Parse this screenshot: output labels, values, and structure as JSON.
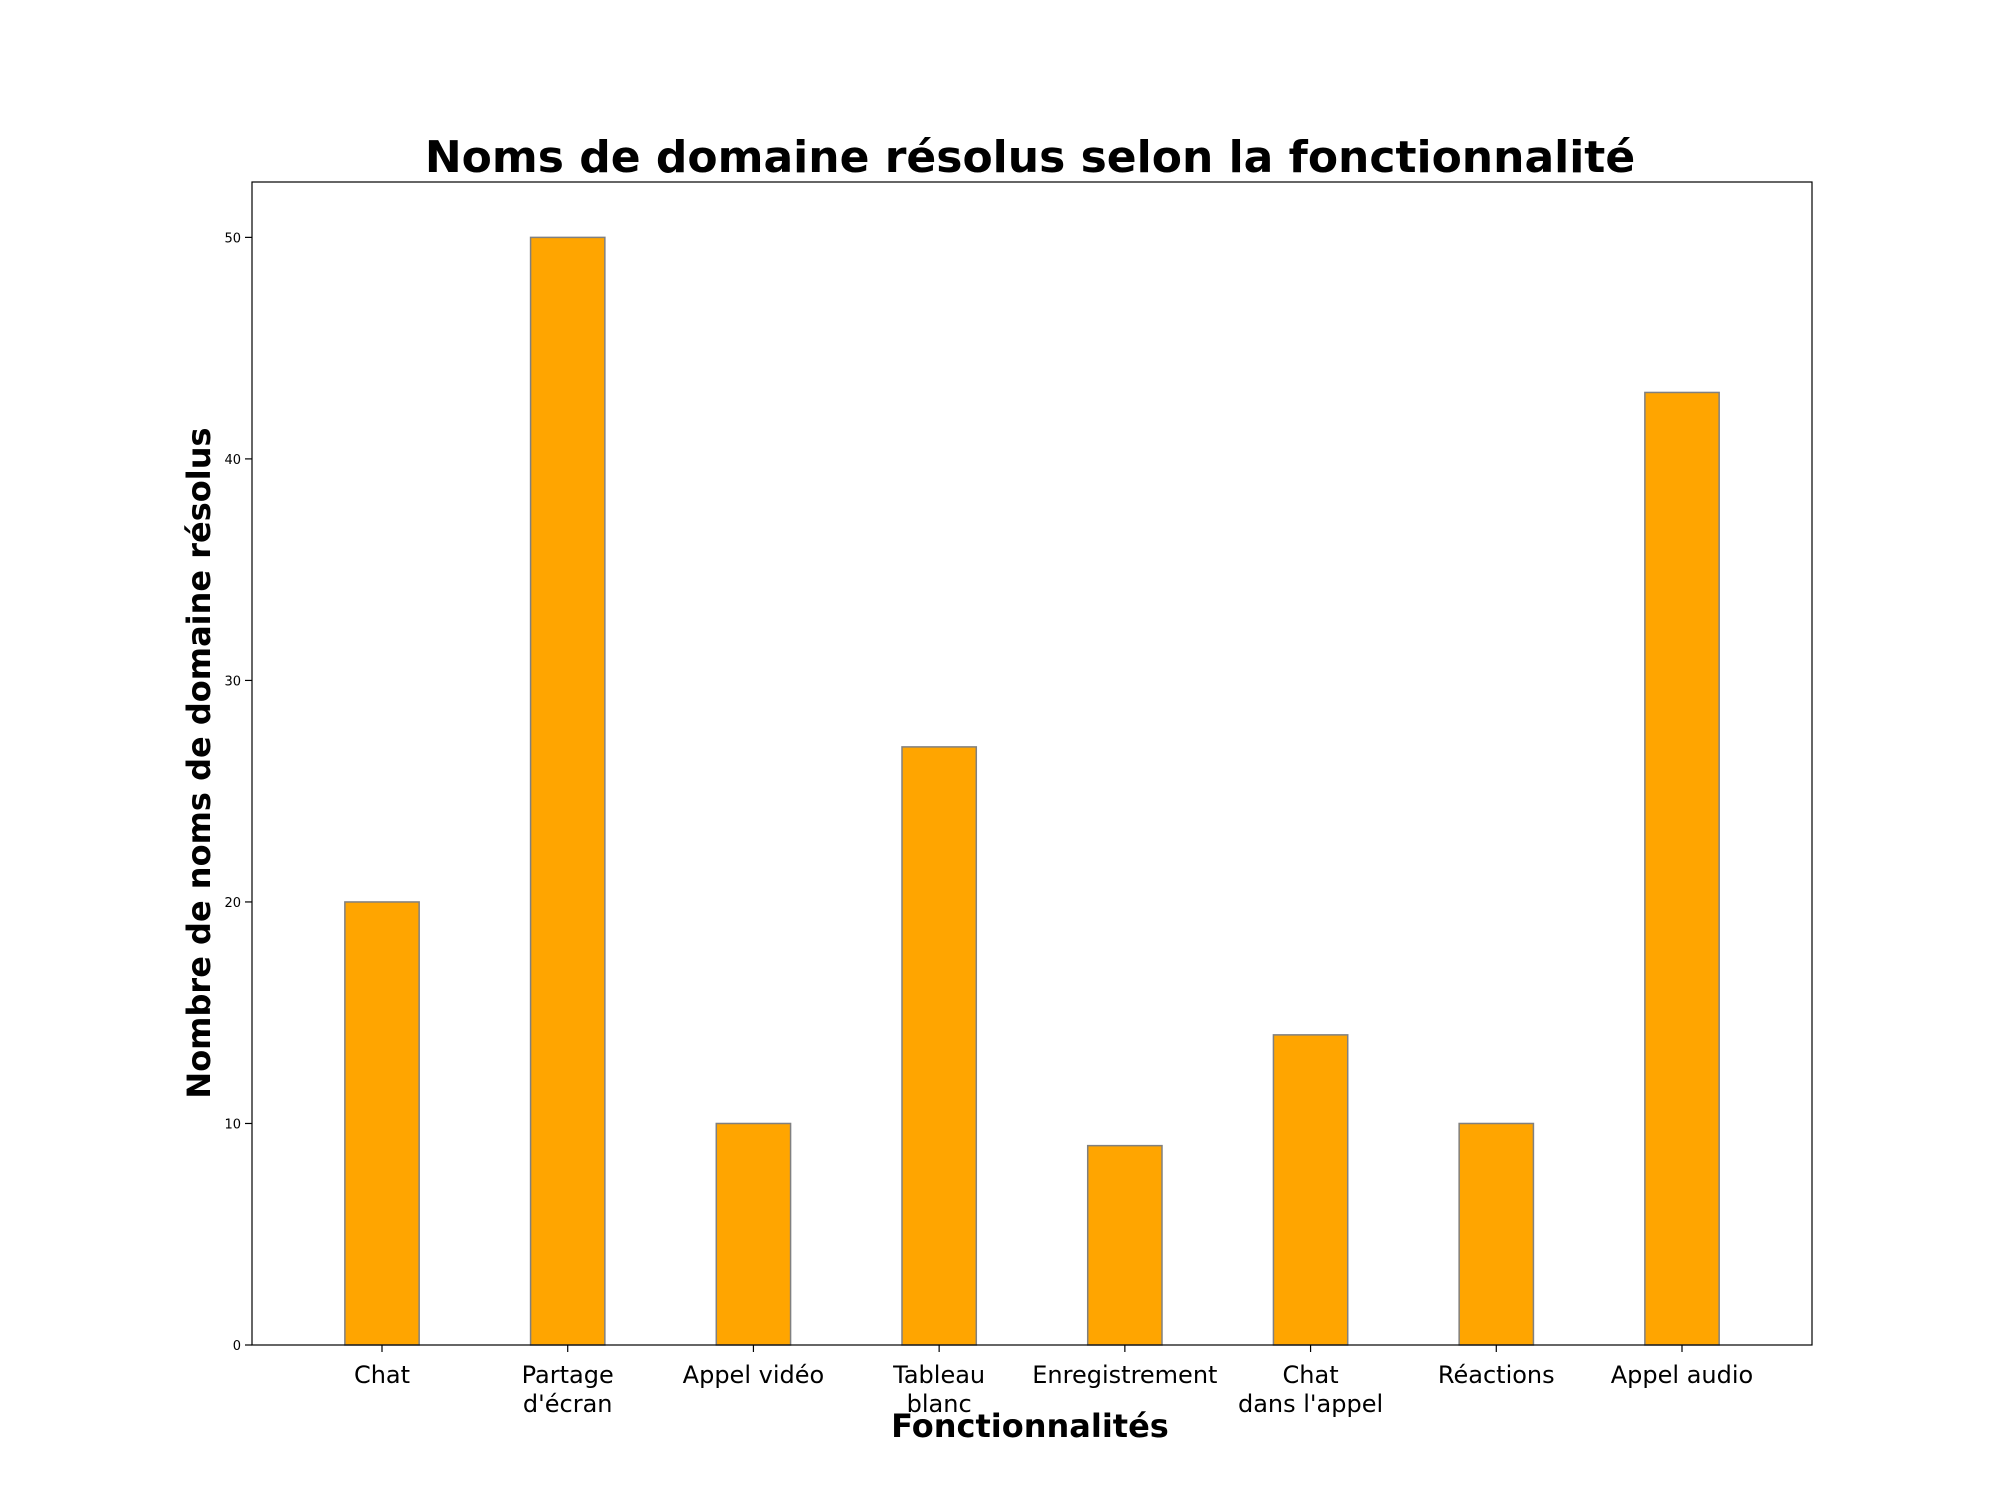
{
  "chart_data": {
    "type": "bar",
    "title": "Noms de domaine résolus selon la fonctionnalité",
    "xlabel": "Fonctionnalités",
    "ylabel": "Nombre de noms de domaine résolus",
    "categories": [
      [
        "Chat"
      ],
      [
        "Partage",
        "d'écran"
      ],
      [
        "Appel vidéo"
      ],
      [
        "Tableau",
        "blanc"
      ],
      [
        "Enregistrement"
      ],
      [
        "Chat",
        "dans l'appel"
      ],
      [
        "Réactions"
      ],
      [
        "Appel audio"
      ]
    ],
    "values": [
      20,
      50,
      10,
      27,
      9,
      14,
      10,
      43
    ],
    "ylim": [
      0,
      52.5
    ],
    "yticks": [
      0,
      10,
      20,
      30,
      40,
      50
    ],
    "bar_color": "#FFA500",
    "bar_edge_color": "#808080",
    "grid": false,
    "legend": "none"
  }
}
